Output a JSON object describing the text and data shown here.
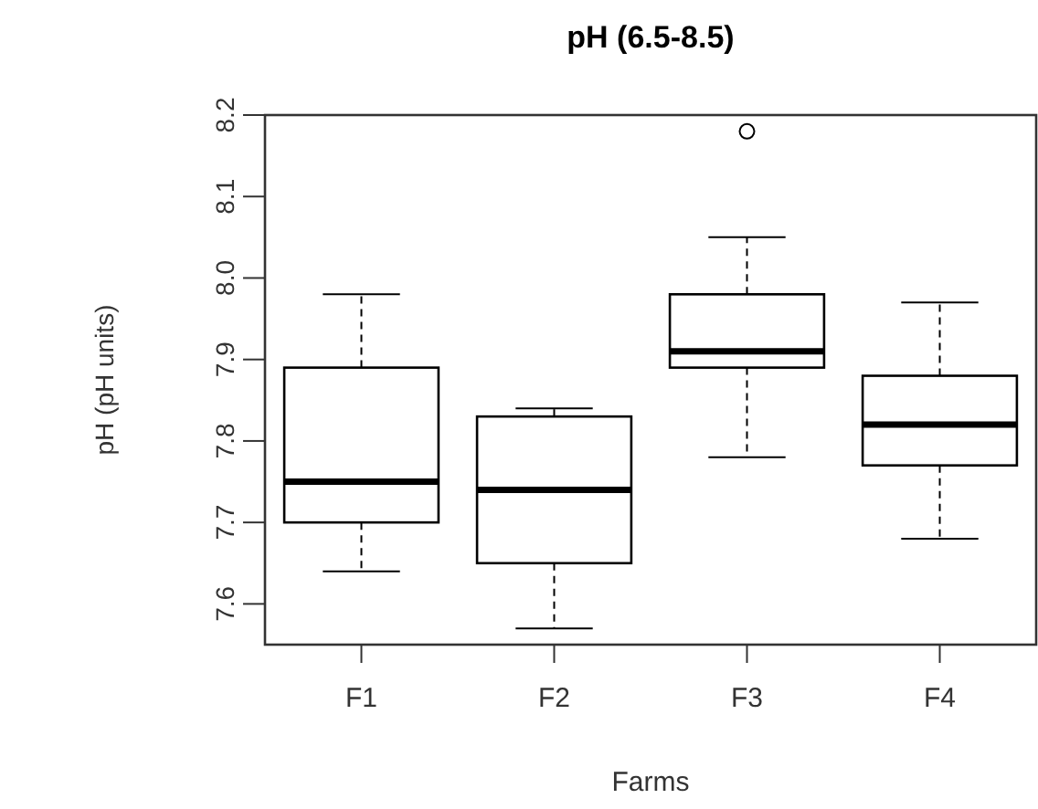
{
  "chart_data": {
    "type": "box",
    "title": "pH (6.5-8.5)",
    "xlabel": "Farms",
    "ylabel": "pH (pH units)",
    "categories": [
      "F1",
      "F2",
      "F3",
      "F4"
    ],
    "boxes": [
      {
        "low": 7.64,
        "q1": 7.7,
        "median": 7.75,
        "q3": 7.89,
        "high": 7.98
      },
      {
        "low": 7.57,
        "q1": 7.65,
        "median": 7.74,
        "q3": 7.83,
        "high": 7.84
      },
      {
        "low": 7.78,
        "q1": 7.89,
        "median": 7.91,
        "q3": 7.98,
        "high": 8.05,
        "outliers": [
          8.18
        ]
      },
      {
        "low": 7.68,
        "q1": 7.77,
        "median": 7.82,
        "q3": 7.88,
        "high": 7.97
      }
    ],
    "ylim": [
      7.55,
      8.2
    ],
    "yticks": [
      7.6,
      7.7,
      7.8,
      7.9,
      {
        "value": 8,
        "label": "8.0"
      },
      8.1,
      8.2
    ],
    "grid": false
  }
}
